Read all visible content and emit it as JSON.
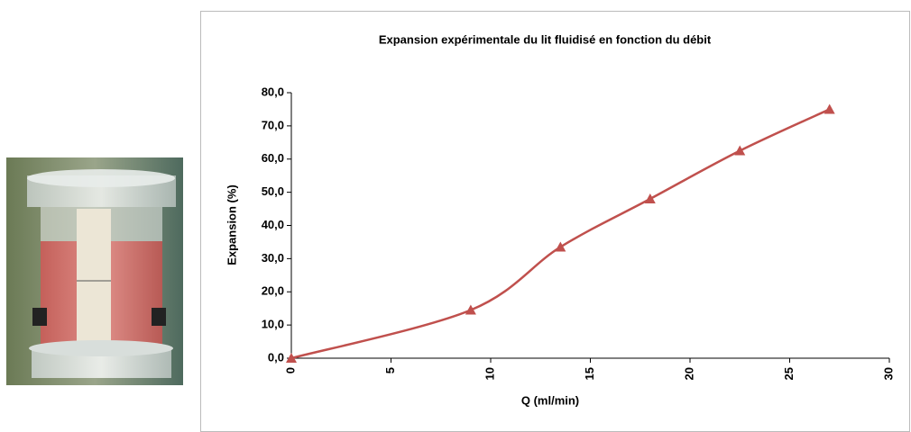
{
  "chart_data": {
    "type": "line",
    "title": "Expansion  expérimentale  du lit fluidisé  en fonction  du débit",
    "x_label": "Q (ml/min)",
    "y_label": "Expansion (%)",
    "x": [
      0,
      9,
      13.5,
      18,
      22.5,
      27
    ],
    "series": [
      {
        "name": "Expansion",
        "color": "#c0504d",
        "values": [
          0,
          14.5,
          33.5,
          48,
          62.5,
          75
        ]
      }
    ],
    "xlim": [
      0,
      30
    ],
    "xticks": [
      0,
      5,
      10,
      15,
      20,
      25,
      30
    ],
    "ylim": [
      0,
      80
    ],
    "yticks": [
      {
        "value": 0,
        "label": "0,0"
      },
      {
        "value": 10,
        "label": "10,0"
      },
      {
        "value": 20,
        "label": "20,0"
      },
      {
        "value": 30,
        "label": "30,0"
      },
      {
        "value": 40,
        "label": "40,0"
      },
      {
        "value": 50,
        "label": "50,0"
      },
      {
        "value": 60,
        "label": "60,0"
      },
      {
        "value": 70,
        "label": "70,0"
      },
      {
        "value": 80,
        "label": "80,0"
      }
    ],
    "grid": false,
    "marker": "triangle",
    "smooth": true
  }
}
